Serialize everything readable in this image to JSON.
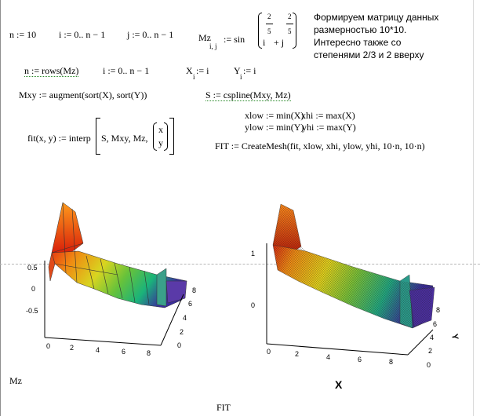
{
  "definitions": {
    "n": "n := 10",
    "i_range": "i := 0.. n − 1",
    "j_range": "j := 0.. n − 1",
    "mz_def": {
      "lhs": "Mz",
      "sub": "i, j",
      "assign": " := sin",
      "base_i": "i",
      "exp_num": "2",
      "exp_den": "5",
      "plus": "+ j"
    },
    "comment": "Формируем матрицу данных размерностью 10*10. Интересно также со степенями 2/3 и 2 вверху",
    "rows_def": "n := rows(Mz)",
    "i_range2": "i := 0.. n − 1",
    "x_def": {
      "lhs": "X",
      "sub": "i",
      "rhs": " := i"
    },
    "y_def": {
      "lhs": "Y",
      "sub": "i",
      "rhs": " := i"
    },
    "mxy_def": "Mxy := augment(sort(X), sort(Y))",
    "s_def": "S := cspline(Mxy, Mz)",
    "xlow": "xlow := min(X)",
    "xhi": "xhi := max(X)",
    "ylow": "ylow := min(Y)",
    "yhi": "yhi := max(Y)",
    "fit_def": {
      "lhs": "fit(x, y) := interp",
      "args": "S, Mxy, Mz,",
      "vec_top": "x",
      "vec_bot": "y"
    },
    "fit_mesh": "FIT := CreateMesh(fit, xlow, xhi, ylow, yhi, 10·n, 10·n)"
  },
  "plot_left": {
    "label": "Mz",
    "z_ticks": [
      "0.5",
      "0",
      "-0.5"
    ],
    "x_ticks": [
      "0",
      "2",
      "4",
      "6",
      "8"
    ],
    "y_ticks": [
      "0",
      "2",
      "4",
      "6",
      "8"
    ]
  },
  "plot_right": {
    "label": "FIT",
    "z_ticks": [
      "1",
      "0"
    ],
    "x_ticks": [
      "0",
      "2",
      "4",
      "6",
      "8"
    ],
    "y_ticks": [
      "0",
      "2",
      "4",
      "6",
      "8"
    ],
    "x_axis_title": "X",
    "y_axis_title": "Y"
  },
  "colors": {
    "surface_high": "#e63a12",
    "surface_mid": "#d8d520",
    "surface_low": "#1ab37a",
    "surface_deep": "#3a2d9e"
  }
}
